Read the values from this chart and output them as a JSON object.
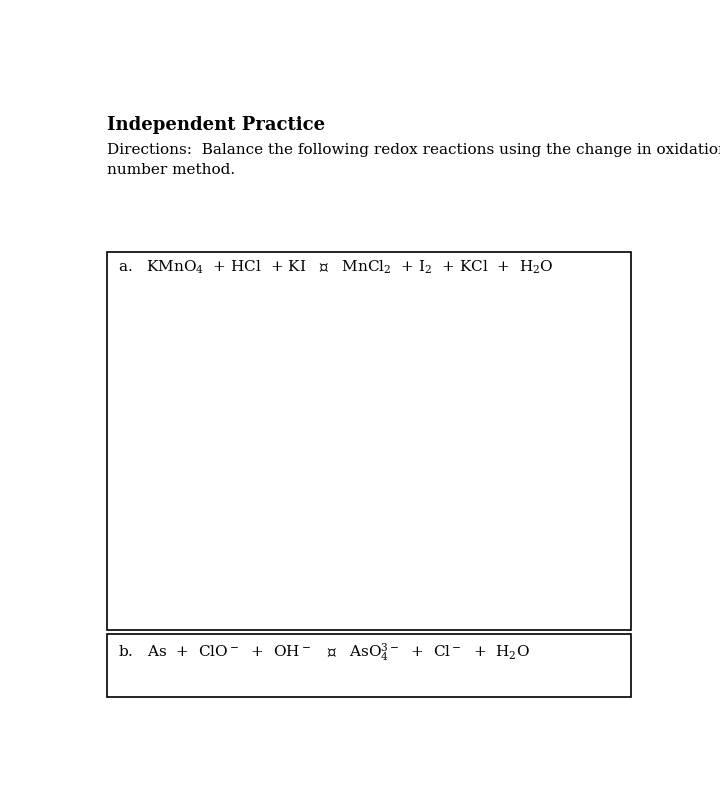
{
  "title": "Independent Practice",
  "directions": "Directions:  Balance the following redox reactions using the change in oxidation\nnumber method.",
  "background_color": "#ffffff",
  "text_color": "#000000",
  "title_fontsize": 13,
  "body_fontsize": 11,
  "reaction_fontsize": 11,
  "reaction_a": "a.   $\\mathregular{KMnO_4}$  + HCl  + KI   ⦿   $\\mathregular{MnCl_2}$  + $\\mathregular{I_2}$  + KCl  +  $\\mathregular{H_2O}$",
  "reaction_b": "b.   As  +  $\\mathregular{ClO^-}$  +  $\\mathregular{OH^-}$   ⦿   $\\mathregular{AsO_4^{3-}}$  +  $\\mathregular{Cl^-}$  +  $\\mathregular{H_2O}$"
}
